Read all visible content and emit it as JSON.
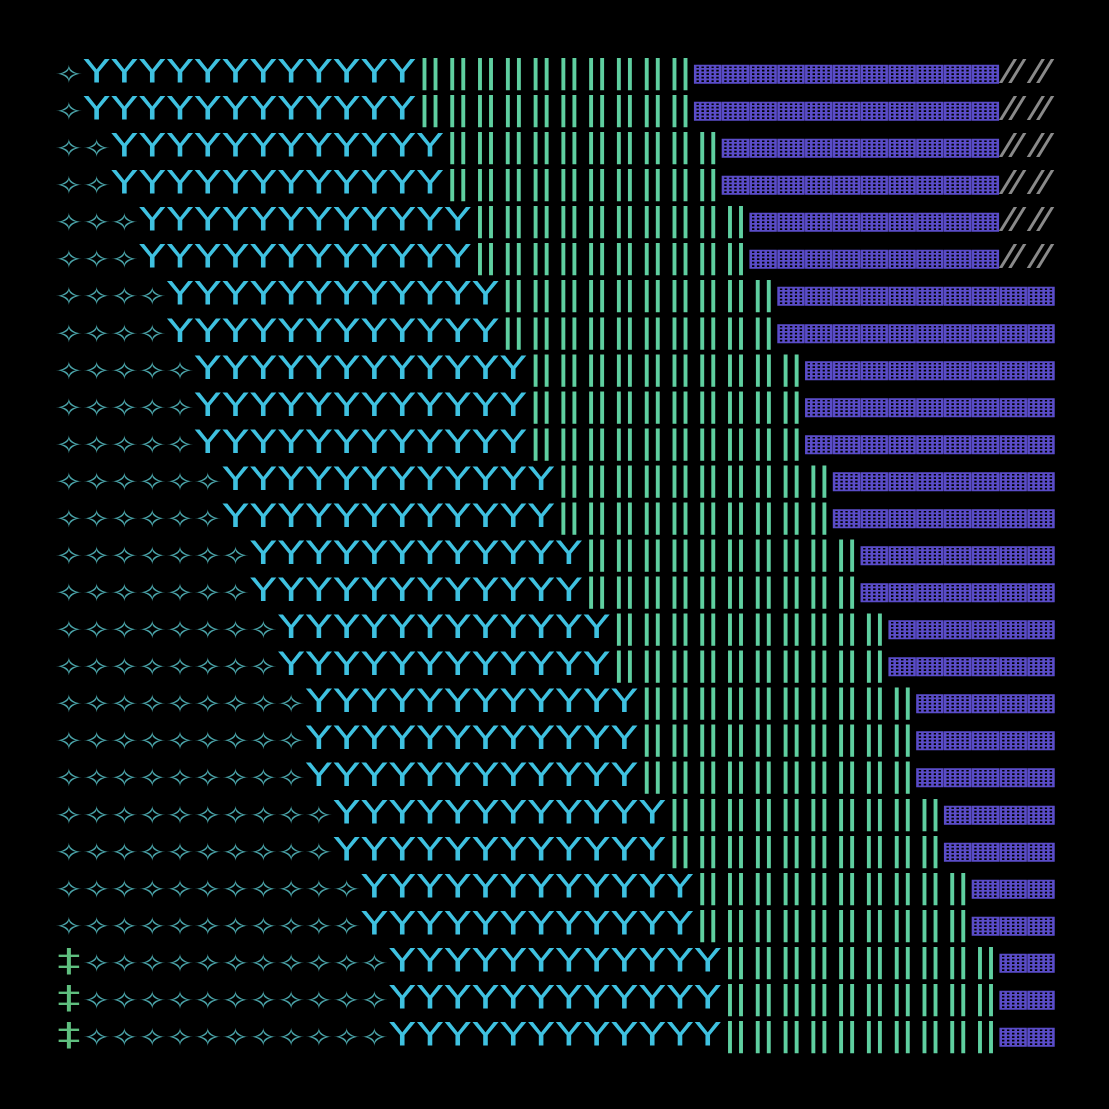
{
  "colors": {
    "✧": "#4aa3a8",
    "‡": "#5fbf7f",
    "Y": "#3fc1e0",
    "‖": "#5fcfa0",
    "▦": "#5a4cc8",
    "⫽": "#8a8a8a"
  },
  "rows": [
    [
      "✧",
      "YYYYYYYYYYYY",
      "‖‖‖‖‖‖‖‖‖‖",
      "▦▦▦▦▦▦▦▦▦▦▦",
      "⫽⫽"
    ],
    [
      "✧",
      "YYYYYYYYYYYY",
      "‖‖‖‖‖‖‖‖‖‖",
      "▦▦▦▦▦▦▦▦▦▦▦",
      "⫽⫽"
    ],
    [
      "✧✧",
      "YYYYYYYYYYYY",
      "‖‖‖‖‖‖‖‖‖‖",
      "▦▦▦▦▦▦▦▦▦▦",
      "⫽⫽"
    ],
    [
      "✧✧",
      "YYYYYYYYYYYY",
      "‖‖‖‖‖‖‖‖‖‖",
      "▦▦▦▦▦▦▦▦▦▦",
      "⫽⫽"
    ],
    [
      "✧✧✧",
      "YYYYYYYYYYYY",
      "‖‖‖‖‖‖‖‖‖‖",
      "▦▦▦▦▦▦▦▦▦",
      "⫽⫽"
    ],
    [
      "✧✧✧",
      "YYYYYYYYYYYY",
      "‖‖‖‖‖‖‖‖‖‖",
      "▦▦▦▦▦▦▦▦▦",
      "⫽⫽"
    ],
    [
      "✧✧✧✧",
      "YYYYYYYYYYYY",
      "‖‖‖‖‖‖‖‖‖‖",
      "▦▦▦▦▦▦▦▦▦▦"
    ],
    [
      "✧✧✧✧",
      "YYYYYYYYYYYY",
      "‖‖‖‖‖‖‖‖‖‖",
      "▦▦▦▦▦▦▦▦▦▦"
    ],
    [
      "✧✧✧✧✧",
      "YYYYYYYYYYYY",
      "‖‖‖‖‖‖‖‖‖‖",
      "▦▦▦▦▦▦▦▦▦"
    ],
    [
      "✧✧✧✧✧",
      "YYYYYYYYYYYY",
      "‖‖‖‖‖‖‖‖‖‖",
      "▦▦▦▦▦▦▦▦▦"
    ],
    [
      "✧✧✧✧✧",
      "YYYYYYYYYYYY",
      "‖‖‖‖‖‖‖‖‖‖",
      "▦▦▦▦▦▦▦▦▦"
    ],
    [
      "✧✧✧✧✧✧",
      "YYYYYYYYYYYY",
      "‖‖‖‖‖‖‖‖‖‖",
      "▦▦▦▦▦▦▦▦"
    ],
    [
      "✧✧✧✧✧✧",
      "YYYYYYYYYYYY",
      "‖‖‖‖‖‖‖‖‖‖",
      "▦▦▦▦▦▦▦▦"
    ],
    [
      "✧✧✧✧✧✧✧",
      "YYYYYYYYYYYY",
      "‖‖‖‖‖‖‖‖‖‖",
      "▦▦▦▦▦▦▦"
    ],
    [
      "✧✧✧✧✧✧✧",
      "YYYYYYYYYYYY",
      "‖‖‖‖‖‖‖‖‖‖",
      "▦▦▦▦▦▦▦"
    ],
    [
      "✧✧✧✧✧✧✧✧",
      "YYYYYYYYYYYY",
      "‖‖‖‖‖‖‖‖‖‖",
      "▦▦▦▦▦▦"
    ],
    [
      "✧✧✧✧✧✧✧✧",
      "YYYYYYYYYYYY",
      "‖‖‖‖‖‖‖‖‖‖",
      "▦▦▦▦▦▦"
    ],
    [
      "✧✧✧✧✧✧✧✧✧",
      "YYYYYYYYYYYY",
      "‖‖‖‖‖‖‖‖‖‖",
      "▦▦▦▦▦"
    ],
    [
      "✧✧✧✧✧✧✧✧✧",
      "YYYYYYYYYYYY",
      "‖‖‖‖‖‖‖‖‖‖",
      "▦▦▦▦▦"
    ],
    [
      "✧✧✧✧✧✧✧✧✧",
      "YYYYYYYYYYYY",
      "‖‖‖‖‖‖‖‖‖‖",
      "▦▦▦▦▦"
    ],
    [
      "✧✧✧✧✧✧✧✧✧✧",
      "YYYYYYYYYYYY",
      "‖‖‖‖‖‖‖‖‖‖",
      "▦▦▦▦"
    ],
    [
      "✧✧✧✧✧✧✧✧✧✧",
      "YYYYYYYYYYYY",
      "‖‖‖‖‖‖‖‖‖‖",
      "▦▦▦▦"
    ],
    [
      "✧✧✧✧✧✧✧✧✧✧✧",
      "YYYYYYYYYYYY",
      "‖‖‖‖‖‖‖‖‖‖",
      "▦▦▦"
    ],
    [
      "✧✧✧✧✧✧✧✧✧✧✧",
      "YYYYYYYYYYYY",
      "‖‖‖‖‖‖‖‖‖‖",
      "▦▦▦"
    ],
    [
      "‡",
      "✧✧✧✧✧✧✧✧✧✧✧",
      "YYYYYYYYYYYY",
      "‖‖‖‖‖‖‖‖‖‖",
      "▦▦"
    ],
    [
      "‡",
      "✧✧✧✧✧✧✧✧✧✧✧",
      "YYYYYYYYYYYY",
      "‖‖‖‖‖‖‖‖‖‖",
      "▦▦"
    ],
    [
      "‡",
      "✧✧✧✧✧✧✧✧✧✧✧",
      "YYYYYYYYYYYY",
      "‖‖‖‖‖‖‖‖‖‖",
      "▦▦"
    ]
  ]
}
